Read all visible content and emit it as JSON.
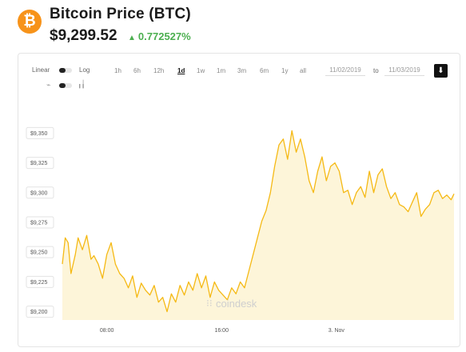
{
  "header": {
    "logo_symbol": "₿",
    "title": "Bitcoin Price (BTC)",
    "price": "$9,299.52",
    "change_icon": "triangle-up-icon",
    "change": "0.772527%",
    "accent_color": "#f7931a",
    "change_color": "#4caf50"
  },
  "controls": {
    "scale_label_linear": "Linear",
    "scale_label_log": "Log",
    "ranges": [
      "1h",
      "6h",
      "12h",
      "1d",
      "1w",
      "1m",
      "3m",
      "6m",
      "1y",
      "all"
    ],
    "active_range": "1d",
    "from_date": "11/02/2019",
    "to_label": "to",
    "to_date": "11/03/2019",
    "download_icon": "download-arrow-icon"
  },
  "watermark": "coindesk",
  "chart_data": {
    "type": "area",
    "title": "",
    "xlabel": "",
    "ylabel": "",
    "line_color": "#f5b914",
    "fill_color": "#fdf3d2",
    "yticks": [
      "$9,350",
      "$9,325",
      "$9,300",
      "$9,275",
      "$9,250",
      "$9,225",
      "$9,200"
    ],
    "ytick_values": [
      9350,
      9325,
      9300,
      9275,
      9250,
      9225,
      9200
    ],
    "ylim": [
      9193,
      9361
    ],
    "xticks": [
      "08:00",
      "16:00",
      "3. Nov"
    ],
    "xtick_hours": [
      8,
      16,
      24
    ],
    "xlim_hours": [
      4.9,
      32.2
    ],
    "series": [
      {
        "x_hours": [
          4.9,
          5.1,
          5.3,
          5.5,
          5.8,
          6.0,
          6.3,
          6.6,
          6.9,
          7.1,
          7.4,
          7.7,
          8.0,
          8.3,
          8.6,
          8.9,
          9.2,
          9.5,
          9.8,
          10.1,
          10.4,
          10.7,
          11.0,
          11.3,
          11.6,
          11.9,
          12.2,
          12.5,
          12.8,
          13.1,
          13.4,
          13.7,
          14.0,
          14.3,
          14.6,
          14.9,
          15.2,
          15.5,
          15.8,
          16.1,
          16.4,
          16.7,
          17.0,
          17.3,
          17.6,
          17.9,
          18.2,
          18.5,
          18.8,
          19.1,
          19.4,
          19.7,
          20.0,
          20.3,
          20.6,
          20.9,
          21.2,
          21.5,
          21.8,
          22.1,
          22.4,
          22.7,
          23.0,
          23.3,
          23.6,
          23.9,
          24.2,
          24.5,
          24.8,
          25.1,
          25.4,
          25.7,
          26.0,
          26.3,
          26.6,
          26.9,
          27.2,
          27.5,
          27.8,
          28.1,
          28.4,
          28.7,
          29.0,
          29.3,
          29.6,
          29.9,
          30.2,
          30.5,
          30.8,
          31.1,
          31.4,
          31.7,
          32.0,
          32.2
        ],
        "values": [
          9240,
          9262,
          9258,
          9232,
          9248,
          9262,
          9252,
          9264,
          9244,
          9247,
          9240,
          9228,
          9248,
          9258,
          9240,
          9232,
          9228,
          9220,
          9230,
          9212,
          9224,
          9218,
          9214,
          9222,
          9208,
          9212,
          9200,
          9215,
          9208,
          9222,
          9214,
          9225,
          9218,
          9232,
          9220,
          9230,
          9212,
          9225,
          9218,
          9214,
          9210,
          9220,
          9215,
          9225,
          9220,
          9234,
          9248,
          9262,
          9276,
          9285,
          9300,
          9322,
          9340,
          9345,
          9328,
          9352,
          9334,
          9345,
          9330,
          9310,
          9300,
          9318,
          9330,
          9310,
          9322,
          9325,
          9318,
          9300,
          9302,
          9290,
          9300,
          9305,
          9296,
          9318,
          9300,
          9315,
          9320,
          9305,
          9295,
          9300,
          9290,
          9288,
          9284,
          9292,
          9300,
          9280,
          9286,
          9290,
          9300,
          9302,
          9295,
          9298,
          9294,
          9299
        ]
      }
    ]
  }
}
